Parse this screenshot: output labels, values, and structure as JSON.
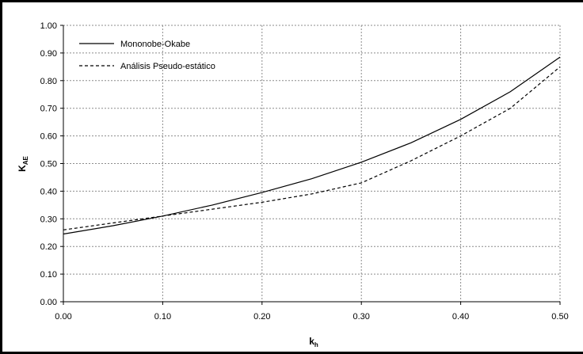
{
  "chart_data": {
    "type": "line",
    "title": "",
    "xlabel": "k",
    "xlabel_sub": "h",
    "ylabel": "K",
    "ylabel_sub": "AE",
    "xlim": [
      0.0,
      0.5
    ],
    "ylim": [
      0.0,
      1.0
    ],
    "x_ticks": [
      "0.00",
      "0.10",
      "0.20",
      "0.30",
      "0.40",
      "0.50"
    ],
    "y_ticks": [
      "0.00",
      "0.10",
      "0.20",
      "0.30",
      "0.40",
      "0.50",
      "0.60",
      "0.70",
      "0.80",
      "0.90",
      "1.00"
    ],
    "grid": true,
    "legend_position": "top-left",
    "series": [
      {
        "name": "Mononobe-Okabe",
        "style": "solid",
        "color": "#000000",
        "x": [
          0.0,
          0.05,
          0.1,
          0.15,
          0.2,
          0.25,
          0.3,
          0.35,
          0.4,
          0.45,
          0.5
        ],
        "y": [
          0.245,
          0.275,
          0.31,
          0.35,
          0.395,
          0.445,
          0.505,
          0.575,
          0.66,
          0.76,
          0.885
        ]
      },
      {
        "name": "Análisis Pseudo-estático",
        "style": "dashed",
        "color": "#000000",
        "x": [
          0.0,
          0.05,
          0.1,
          0.15,
          0.2,
          0.25,
          0.3,
          0.35,
          0.4,
          0.45,
          0.5
        ],
        "y": [
          0.26,
          0.285,
          0.31,
          0.335,
          0.36,
          0.39,
          0.43,
          0.51,
          0.6,
          0.7,
          0.85
        ]
      }
    ]
  }
}
